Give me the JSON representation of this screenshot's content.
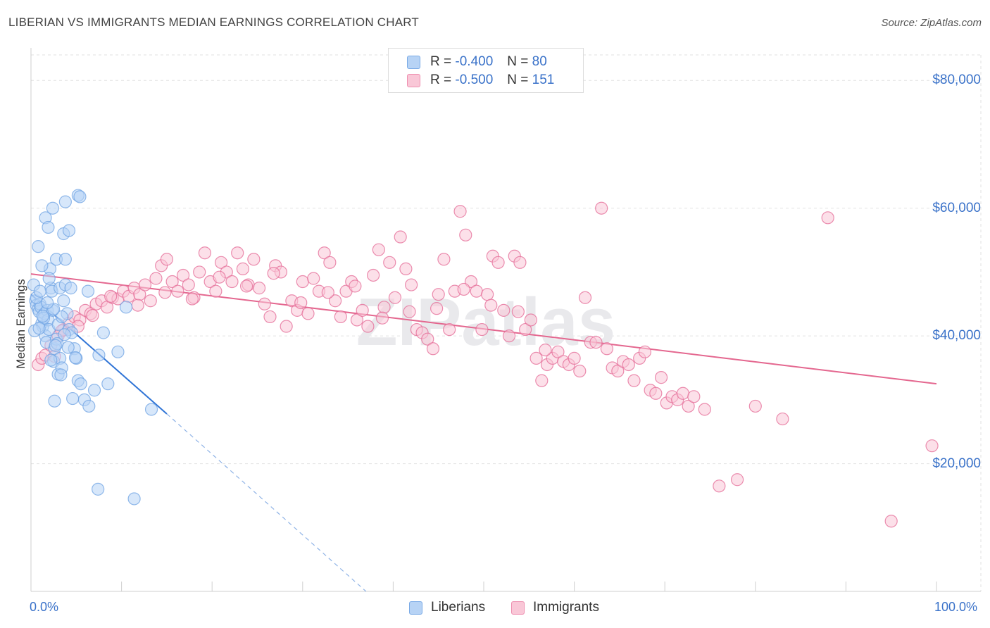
{
  "title": "LIBERIAN VS IMMIGRANTS MEDIAN EARNINGS CORRELATION CHART",
  "source": "Source: ZipAtlas.com",
  "watermark": "ZIPatlas",
  "legend": {
    "rows": [
      {
        "r_label": "R =",
        "r_value": "-0.400",
        "n_label": "N =",
        "n_value": "80",
        "fill": "#b7d3f5",
        "stroke": "#7aaae6"
      },
      {
        "r_label": "R =",
        "r_value": "-0.500",
        "n_label": "N =",
        "n_value": "151",
        "fill": "#f9c7d7",
        "stroke": "#ee8fb0"
      }
    ]
  },
  "bottom_legend": [
    {
      "label": "Liberians",
      "fill": "#b7d3f5",
      "stroke": "#7aaae6"
    },
    {
      "label": "Immigrants",
      "fill": "#f9c7d7",
      "stroke": "#ee8fb0"
    }
  ],
  "chart_data": {
    "type": "scatter",
    "title": "LIBERIAN VS IMMIGRANTS MEDIAN EARNINGS CORRELATION CHART",
    "xlabel": "",
    "ylabel": "Median Earnings",
    "xlim": [
      0,
      100
    ],
    "ylim": [
      0,
      84000
    ],
    "x_tick_labels": [
      "0.0%",
      "100.0%"
    ],
    "y_ticks": [
      20000,
      40000,
      60000,
      80000
    ],
    "y_tick_labels": [
      "$20,000",
      "$40,000",
      "$60,000",
      "$80,000"
    ],
    "grid": true,
    "legend_position": "top-center",
    "series": [
      {
        "name": "Liberians",
        "color": "#6fa3e3",
        "fill": "#b7d3f5",
        "r": -0.4,
        "n": 80,
        "trend": {
          "x": [
            0,
            15
          ],
          "y": [
            46500,
            27800
          ],
          "dashed_to": [
            37,
            0
          ]
        },
        "points": [
          [
            0.3,
            48000
          ],
          [
            0.5,
            45500
          ],
          [
            0.6,
            44800
          ],
          [
            0.8,
            44200
          ],
          [
            0.9,
            43800
          ],
          [
            1.0,
            45000
          ],
          [
            1.1,
            44500
          ],
          [
            1.2,
            42000
          ],
          [
            1.3,
            41500
          ],
          [
            1.5,
            43500
          ],
          [
            1.6,
            40000
          ],
          [
            1.7,
            39000
          ],
          [
            1.8,
            44000
          ],
          [
            1.9,
            42500
          ],
          [
            2.0,
            41000
          ],
          [
            2.1,
            50500
          ],
          [
            2.2,
            47500
          ],
          [
            2.3,
            47000
          ],
          [
            2.4,
            44000
          ],
          [
            2.5,
            36000
          ],
          [
            2.6,
            38000
          ],
          [
            2.8,
            39500
          ],
          [
            3.0,
            34000
          ],
          [
            3.2,
            36500
          ],
          [
            3.4,
            35000
          ],
          [
            0.8,
            54000
          ],
          [
            1.2,
            51000
          ],
          [
            1.6,
            58500
          ],
          [
            1.9,
            57000
          ],
          [
            2.4,
            60000
          ],
          [
            2.8,
            52000
          ],
          [
            3.2,
            47500
          ],
          [
            3.6,
            45500
          ],
          [
            3.8,
            48000
          ],
          [
            4.0,
            43500
          ],
          [
            4.2,
            41000
          ],
          [
            4.5,
            40500
          ],
          [
            4.8,
            38000
          ],
          [
            5.0,
            36500
          ],
          [
            5.2,
            33000
          ],
          [
            5.5,
            32500
          ],
          [
            5.9,
            30000
          ],
          [
            3.6,
            56000
          ],
          [
            4.2,
            56500
          ],
          [
            3.8,
            61000
          ],
          [
            5.2,
            62000
          ],
          [
            5.4,
            61800
          ],
          [
            3.8,
            52000
          ],
          [
            4.4,
            47500
          ],
          [
            6.4,
            29000
          ],
          [
            7.0,
            31500
          ],
          [
            7.5,
            37000
          ],
          [
            8.0,
            40500
          ],
          [
            8.5,
            32500
          ],
          [
            9.6,
            37500
          ],
          [
            10.5,
            44500
          ],
          [
            13.3,
            28500
          ],
          [
            7.4,
            16000
          ],
          [
            11.4,
            14500
          ],
          [
            2.6,
            29800
          ],
          [
            4.6,
            30200
          ],
          [
            3.0,
            41800
          ],
          [
            3.4,
            43000
          ],
          [
            1.4,
            42800
          ],
          [
            0.6,
            46000
          ],
          [
            1.0,
            47000
          ],
          [
            0.4,
            40800
          ],
          [
            2.0,
            49000
          ],
          [
            2.9,
            38800
          ],
          [
            4.1,
            38200
          ],
          [
            6.3,
            47000
          ],
          [
            2.5,
            44200
          ],
          [
            1.8,
            45200
          ],
          [
            0.9,
            41200
          ],
          [
            3.3,
            33900
          ],
          [
            2.2,
            36200
          ],
          [
            4.9,
            36600
          ],
          [
            3.7,
            40200
          ],
          [
            1.3,
            43100
          ],
          [
            2.7,
            38500
          ]
        ]
      },
      {
        "name": "Immigrants",
        "color": "#e46a96",
        "fill": "#f9c7d7",
        "r": -0.5,
        "n": 151,
        "trend": {
          "x": [
            0,
            100
          ],
          "y": [
            49700,
            32500
          ]
        },
        "points": [
          [
            0.8,
            35500
          ],
          [
            1.2,
            36500
          ],
          [
            1.6,
            37000
          ],
          [
            2.2,
            38500
          ],
          [
            3.0,
            40000
          ],
          [
            3.6,
            41000
          ],
          [
            4.2,
            42000
          ],
          [
            4.8,
            43000
          ],
          [
            5.4,
            42500
          ],
          [
            6.0,
            44000
          ],
          [
            6.6,
            43500
          ],
          [
            7.2,
            45000
          ],
          [
            7.8,
            45500
          ],
          [
            8.4,
            44500
          ],
          [
            9.0,
            46000
          ],
          [
            9.6,
            45800
          ],
          [
            10.2,
            47000
          ],
          [
            10.8,
            46200
          ],
          [
            11.4,
            47500
          ],
          [
            12.0,
            46500
          ],
          [
            12.6,
            48000
          ],
          [
            13.2,
            45500
          ],
          [
            13.8,
            49000
          ],
          [
            14.4,
            51000
          ],
          [
            15.0,
            52000
          ],
          [
            15.6,
            48500
          ],
          [
            16.2,
            47000
          ],
          [
            16.8,
            49500
          ],
          [
            17.4,
            48000
          ],
          [
            18.0,
            46000
          ],
          [
            18.6,
            50000
          ],
          [
            19.2,
            53000
          ],
          [
            19.8,
            48500
          ],
          [
            20.4,
            47000
          ],
          [
            21.0,
            51500
          ],
          [
            21.6,
            50000
          ],
          [
            22.2,
            48500
          ],
          [
            22.8,
            53000
          ],
          [
            23.4,
            50500
          ],
          [
            24.0,
            48000
          ],
          [
            24.6,
            52000
          ],
          [
            25.2,
            47500
          ],
          [
            25.8,
            45000
          ],
          [
            26.4,
            43000
          ],
          [
            27.0,
            51000
          ],
          [
            27.6,
            50000
          ],
          [
            28.2,
            41500
          ],
          [
            28.8,
            45500
          ],
          [
            29.4,
            44000
          ],
          [
            30.0,
            48500
          ],
          [
            30.6,
            43500
          ],
          [
            31.2,
            49000
          ],
          [
            31.8,
            47000
          ],
          [
            32.4,
            53000
          ],
          [
            33.0,
            51500
          ],
          [
            33.6,
            45500
          ],
          [
            34.2,
            43000
          ],
          [
            34.8,
            47000
          ],
          [
            35.4,
            48500
          ],
          [
            36.0,
            42500
          ],
          [
            36.6,
            44000
          ],
          [
            37.2,
            41500
          ],
          [
            37.8,
            49500
          ],
          [
            38.4,
            53500
          ],
          [
            39.0,
            44500
          ],
          [
            39.6,
            51500
          ],
          [
            40.2,
            46000
          ],
          [
            40.8,
            55500
          ],
          [
            41.4,
            50500
          ],
          [
            42.0,
            48000
          ],
          [
            42.6,
            41000
          ],
          [
            43.2,
            40500
          ],
          [
            43.8,
            39500
          ],
          [
            44.4,
            38000
          ],
          [
            45.0,
            46500
          ],
          [
            45.6,
            52000
          ],
          [
            46.2,
            41000
          ],
          [
            46.8,
            47000
          ],
          [
            47.4,
            59500
          ],
          [
            48.0,
            55800
          ],
          [
            48.6,
            48500
          ],
          [
            49.2,
            47000
          ],
          [
            49.8,
            41000
          ],
          [
            50.4,
            46500
          ],
          [
            51.0,
            52500
          ],
          [
            51.6,
            51500
          ],
          [
            52.2,
            44000
          ],
          [
            52.8,
            40000
          ],
          [
            53.4,
            52500
          ],
          [
            54.0,
            51500
          ],
          [
            54.6,
            41000
          ],
          [
            55.2,
            42500
          ],
          [
            55.8,
            36500
          ],
          [
            56.4,
            33000
          ],
          [
            57.0,
            35500
          ],
          [
            57.6,
            36500
          ],
          [
            58.2,
            37500
          ],
          [
            58.8,
            36000
          ],
          [
            59.4,
            35500
          ],
          [
            60.0,
            36500
          ],
          [
            60.6,
            34500
          ],
          [
            61.2,
            46000
          ],
          [
            61.8,
            39000
          ],
          [
            62.4,
            39000
          ],
          [
            63.0,
            60000
          ],
          [
            63.6,
            38000
          ],
          [
            64.2,
            35000
          ],
          [
            64.8,
            34500
          ],
          [
            65.4,
            36000
          ],
          [
            66.0,
            35500
          ],
          [
            66.6,
            33000
          ],
          [
            67.2,
            36500
          ],
          [
            67.8,
            37500
          ],
          [
            68.4,
            31500
          ],
          [
            69.0,
            31000
          ],
          [
            69.6,
            33500
          ],
          [
            70.2,
            29500
          ],
          [
            70.8,
            30500
          ],
          [
            71.4,
            30000
          ],
          [
            72.0,
            31000
          ],
          [
            72.6,
            29000
          ],
          [
            73.2,
            30500
          ],
          [
            74.4,
            28500
          ],
          [
            76.0,
            16500
          ],
          [
            78.0,
            17500
          ],
          [
            80.0,
            29000
          ],
          [
            83.0,
            27000
          ],
          [
            88.0,
            58500
          ],
          [
            95.0,
            11000
          ],
          [
            99.5,
            22800
          ],
          [
            2.6,
            36800
          ],
          [
            3.4,
            40800
          ],
          [
            5.2,
            41500
          ],
          [
            6.8,
            43200
          ],
          [
            8.8,
            46200
          ],
          [
            11.8,
            44800
          ],
          [
            14.8,
            46800
          ],
          [
            17.8,
            45800
          ],
          [
            20.8,
            49200
          ],
          [
            23.8,
            47800
          ],
          [
            26.8,
            49800
          ],
          [
            29.8,
            45200
          ],
          [
            32.8,
            46800
          ],
          [
            35.8,
            47800
          ],
          [
            38.8,
            42800
          ],
          [
            41.8,
            43800
          ],
          [
            44.8,
            44300
          ],
          [
            47.8,
            47300
          ],
          [
            50.8,
            44800
          ],
          [
            53.8,
            43800
          ],
          [
            56.8,
            37800
          ]
        ]
      }
    ]
  }
}
